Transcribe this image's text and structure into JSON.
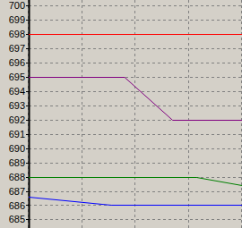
{
  "chart_data": {
    "type": "line",
    "xlim": [
      0,
      8
    ],
    "xticks": [
      0,
      2,
      4,
      6,
      8
    ],
    "ylim": [
      684.4,
      700.4
    ],
    "yticks": [
      685,
      686,
      687,
      688,
      689,
      690,
      691,
      692,
      693,
      694,
      695,
      696,
      697,
      698,
      699,
      700
    ],
    "grid": true,
    "tick_labels": "y",
    "series": [
      {
        "color": "#ff0000",
        "x": [
          0,
          8
        ],
        "values": [
          698,
          698
        ]
      },
      {
        "color": "#800080",
        "x": [
          0,
          3.6,
          5.4,
          8
        ],
        "values": [
          695,
          695,
          692,
          692
        ]
      },
      {
        "color": "#008000",
        "x": [
          0,
          6.3,
          8
        ],
        "values": [
          688,
          688,
          687.4
        ]
      },
      {
        "color": "#0000ff",
        "x": [
          0,
          3.1,
          8
        ],
        "values": [
          686.6,
          686,
          686
        ]
      }
    ]
  }
}
